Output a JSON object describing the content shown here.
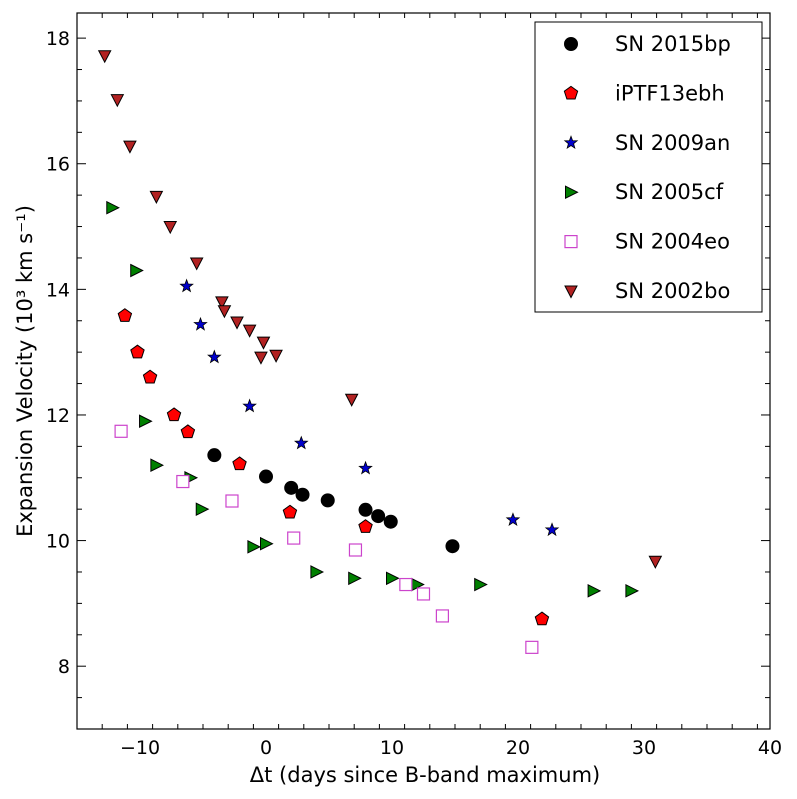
{
  "chart_data": {
    "type": "scatter",
    "xlabel": "Δt (days since B-band maximum)",
    "ylabel": "Expansion Velocity (10³ km s⁻¹)",
    "xlim": [
      -15,
      40
    ],
    "ylim": [
      7,
      18.4
    ],
    "xticks": [
      -10,
      0,
      10,
      20,
      30,
      40
    ],
    "yticks": [
      8,
      10,
      12,
      14,
      16,
      18
    ],
    "legend_position": "top-right",
    "grid": false,
    "series": [
      {
        "name": "SN 2015bp",
        "marker": "circle",
        "color": "#000000",
        "points": [
          [
            -4.1,
            11.36
          ],
          [
            0.0,
            11.02
          ],
          [
            2.0,
            10.84
          ],
          [
            2.9,
            10.73
          ],
          [
            4.9,
            10.64
          ],
          [
            7.9,
            10.49
          ],
          [
            8.9,
            10.39
          ],
          [
            9.9,
            10.3
          ],
          [
            14.8,
            9.91
          ]
        ]
      },
      {
        "name": "iPTF13ebh",
        "marker": "pentagon",
        "color": "#ff0000",
        "points": [
          [
            -11.2,
            13.58
          ],
          [
            -10.2,
            13.0
          ],
          [
            -9.2,
            12.6
          ],
          [
            -7.3,
            12.0
          ],
          [
            -6.2,
            11.73
          ],
          [
            -2.1,
            11.22
          ],
          [
            1.9,
            10.45
          ],
          [
            7.9,
            10.22
          ],
          [
            21.9,
            8.75
          ]
        ]
      },
      {
        "name": "SN 2009an",
        "marker": "star",
        "color": "#0000cc",
        "points": [
          [
            -6.3,
            14.05
          ],
          [
            -5.2,
            13.44
          ],
          [
            -4.1,
            12.92
          ],
          [
            -1.3,
            12.14
          ],
          [
            2.8,
            11.55
          ],
          [
            7.9,
            11.15
          ],
          [
            19.6,
            10.33
          ],
          [
            22.7,
            10.17
          ]
        ]
      },
      {
        "name": "SN 2005cf",
        "marker": "triangle-right",
        "color": "#008000",
        "points": [
          [
            -12.2,
            15.3
          ],
          [
            -10.3,
            14.3
          ],
          [
            -9.6,
            11.9
          ],
          [
            -8.7,
            11.2
          ],
          [
            -6.0,
            11.0
          ],
          [
            -5.1,
            10.5
          ],
          [
            -1.0,
            9.9
          ],
          [
            0.0,
            9.95
          ],
          [
            4.0,
            9.5
          ],
          [
            7.0,
            9.4
          ],
          [
            10.0,
            9.4
          ],
          [
            12.0,
            9.3
          ],
          [
            17.0,
            9.3
          ],
          [
            26.0,
            9.2
          ],
          [
            29.0,
            9.2
          ]
        ]
      },
      {
        "name": "SN 2004eo",
        "marker": "square-open",
        "color": "#cc44cc",
        "points": [
          [
            -11.5,
            11.74
          ],
          [
            -6.6,
            10.94
          ],
          [
            -2.7,
            10.63
          ],
          [
            2.2,
            10.04
          ],
          [
            7.1,
            9.85
          ],
          [
            11.1,
            9.3
          ],
          [
            12.5,
            9.15
          ],
          [
            14.0,
            8.8
          ],
          [
            21.1,
            8.3
          ]
        ]
      },
      {
        "name": "SN 2002bo",
        "marker": "triangle-down",
        "color": "#b22222",
        "points": [
          [
            -12.8,
            17.72
          ],
          [
            -11.8,
            17.02
          ],
          [
            -10.8,
            16.28
          ],
          [
            -8.7,
            15.48
          ],
          [
            -7.6,
            15.0
          ],
          [
            -5.5,
            14.42
          ],
          [
            -3.5,
            13.8
          ],
          [
            -3.3,
            13.66
          ],
          [
            -2.3,
            13.48
          ],
          [
            -1.3,
            13.35
          ],
          [
            -0.2,
            13.16
          ],
          [
            -0.4,
            12.92
          ],
          [
            0.8,
            12.95
          ],
          [
            6.8,
            12.25
          ],
          [
            30.9,
            9.67
          ]
        ]
      }
    ]
  }
}
